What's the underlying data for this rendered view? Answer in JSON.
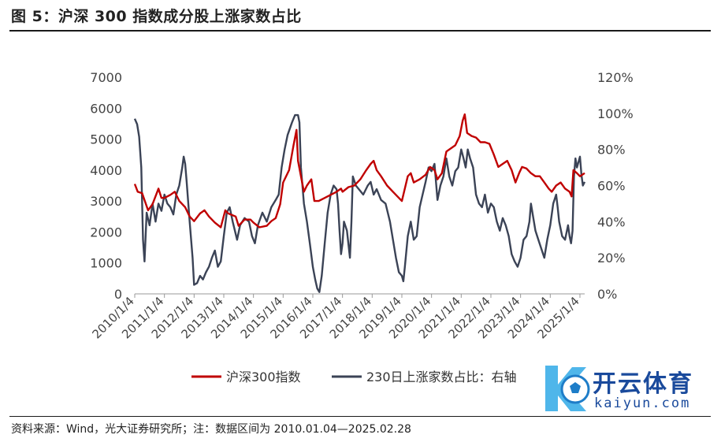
{
  "title": "图 5：沪深 300 指数成分股上涨家数占比",
  "source": "资料来源：Wind，光大证券研究所；注：数据区间为 2010.01.04—2025.02.28",
  "watermark": {
    "brand": "开云体育",
    "site": "kaiyun.com"
  },
  "colors": {
    "index": "#c00000",
    "ratio": "#3b4356"
  },
  "chart_data": {
    "type": "line",
    "title": "",
    "legend_position": "bottom",
    "x_ticks": [
      "2010/1/4",
      "2011/1/4",
      "2012/1/4",
      "2013/1/4",
      "2014/1/4",
      "2015/1/4",
      "2016/1/4",
      "2017/1/4",
      "2018/1/4",
      "2019/1/4",
      "2020/1/4",
      "2021/1/4",
      "2022/1/4",
      "2023/1/4",
      "2024/1/4",
      "2025/1/4"
    ],
    "x_range": [
      2010.0,
      2025.16
    ],
    "y_left": {
      "min": 0,
      "max": 7000,
      "ticks": [
        "0",
        "1000",
        "2000",
        "3000",
        "4000",
        "5000",
        "6000",
        "7000"
      ]
    },
    "y_right": {
      "min": 0,
      "max": 1.2,
      "ticks": [
        "0%",
        "20%",
        "40%",
        "60%",
        "80%",
        "100%",
        "120%"
      ]
    },
    "series": [
      {
        "name": "沪深300指数",
        "axis": "left",
        "points": [
          [
            2010.0,
            3550
          ],
          [
            2010.1,
            3300
          ],
          [
            2010.25,
            3250
          ],
          [
            2010.45,
            2700
          ],
          [
            2010.6,
            2900
          ],
          [
            2010.8,
            3400
          ],
          [
            2010.9,
            3100
          ],
          [
            2011.0,
            3100
          ],
          [
            2011.2,
            3200
          ],
          [
            2011.35,
            3300
          ],
          [
            2011.5,
            3000
          ],
          [
            2011.7,
            2800
          ],
          [
            2011.85,
            2500
          ],
          [
            2012.0,
            2350
          ],
          [
            2012.2,
            2600
          ],
          [
            2012.35,
            2700
          ],
          [
            2012.5,
            2500
          ],
          [
            2012.7,
            2300
          ],
          [
            2012.9,
            2150
          ],
          [
            2013.05,
            2700
          ],
          [
            2013.15,
            2600
          ],
          [
            2013.4,
            2500
          ],
          [
            2013.5,
            2200
          ],
          [
            2013.7,
            2400
          ],
          [
            2013.9,
            2400
          ],
          [
            2014.0,
            2300
          ],
          [
            2014.2,
            2150
          ],
          [
            2014.45,
            2200
          ],
          [
            2014.6,
            2350
          ],
          [
            2014.75,
            2450
          ],
          [
            2014.9,
            2900
          ],
          [
            2015.0,
            3600
          ],
          [
            2015.2,
            4000
          ],
          [
            2015.35,
            4800
          ],
          [
            2015.45,
            5300
          ],
          [
            2015.5,
            4300
          ],
          [
            2015.6,
            3800
          ],
          [
            2015.7,
            3300
          ],
          [
            2015.8,
            3500
          ],
          [
            2015.95,
            3700
          ],
          [
            2016.05,
            3000
          ],
          [
            2016.2,
            3000
          ],
          [
            2016.4,
            3100
          ],
          [
            2016.6,
            3200
          ],
          [
            2016.8,
            3300
          ],
          [
            2016.95,
            3400
          ],
          [
            2017.0,
            3300
          ],
          [
            2017.2,
            3450
          ],
          [
            2017.4,
            3500
          ],
          [
            2017.6,
            3700
          ],
          [
            2017.8,
            4000
          ],
          [
            2017.95,
            4200
          ],
          [
            2018.05,
            4300
          ],
          [
            2018.15,
            4000
          ],
          [
            2018.3,
            3800
          ],
          [
            2018.5,
            3500
          ],
          [
            2018.7,
            3300
          ],
          [
            2018.9,
            3100
          ],
          [
            2019.0,
            3000
          ],
          [
            2019.2,
            3800
          ],
          [
            2019.3,
            3900
          ],
          [
            2019.4,
            3600
          ],
          [
            2019.6,
            3700
          ],
          [
            2019.8,
            3850
          ],
          [
            2019.95,
            4100
          ],
          [
            2020.1,
            4000
          ],
          [
            2020.2,
            3700
          ],
          [
            2020.35,
            3900
          ],
          [
            2020.5,
            4600
          ],
          [
            2020.65,
            4700
          ],
          [
            2020.8,
            4800
          ],
          [
            2020.95,
            5100
          ],
          [
            2021.05,
            5600
          ],
          [
            2021.12,
            5800
          ],
          [
            2021.2,
            5200
          ],
          [
            2021.35,
            5100
          ],
          [
            2021.5,
            5050
          ],
          [
            2021.65,
            4900
          ],
          [
            2021.8,
            4900
          ],
          [
            2021.95,
            4850
          ],
          [
            2022.1,
            4500
          ],
          [
            2022.25,
            4100
          ],
          [
            2022.4,
            4200
          ],
          [
            2022.55,
            4300
          ],
          [
            2022.7,
            4000
          ],
          [
            2022.83,
            3600
          ],
          [
            2022.95,
            3900
          ],
          [
            2023.05,
            4100
          ],
          [
            2023.2,
            4050
          ],
          [
            2023.35,
            3900
          ],
          [
            2023.5,
            3800
          ],
          [
            2023.65,
            3800
          ],
          [
            2023.8,
            3600
          ],
          [
            2023.95,
            3400
          ],
          [
            2024.05,
            3300
          ],
          [
            2024.2,
            3500
          ],
          [
            2024.35,
            3600
          ],
          [
            2024.5,
            3400
          ],
          [
            2024.65,
            3300
          ],
          [
            2024.72,
            3150
          ],
          [
            2024.78,
            4000
          ],
          [
            2024.9,
            3900
          ],
          [
            2025.0,
            3800
          ],
          [
            2025.16,
            3900
          ]
        ]
      },
      {
        "name": "230日上涨家数占比：右轴",
        "axis": "right",
        "points": [
          [
            2010.0,
            0.97
          ],
          [
            2010.08,
            0.94
          ],
          [
            2010.15,
            0.87
          ],
          [
            2010.22,
            0.7
          ],
          [
            2010.28,
            0.3
          ],
          [
            2010.33,
            0.18
          ],
          [
            2010.4,
            0.45
          ],
          [
            2010.5,
            0.38
          ],
          [
            2010.6,
            0.5
          ],
          [
            2010.7,
            0.4
          ],
          [
            2010.8,
            0.5
          ],
          [
            2010.9,
            0.46
          ],
          [
            2011.0,
            0.55
          ],
          [
            2011.1,
            0.5
          ],
          [
            2011.2,
            0.48
          ],
          [
            2011.3,
            0.44
          ],
          [
            2011.4,
            0.55
          ],
          [
            2011.5,
            0.6
          ],
          [
            2011.55,
            0.65
          ],
          [
            2011.6,
            0.7
          ],
          [
            2011.65,
            0.76
          ],
          [
            2011.7,
            0.72
          ],
          [
            2011.75,
            0.62
          ],
          [
            2011.85,
            0.4
          ],
          [
            2011.95,
            0.2
          ],
          [
            2012.0,
            0.05
          ],
          [
            2012.1,
            0.06
          ],
          [
            2012.2,
            0.1
          ],
          [
            2012.3,
            0.08
          ],
          [
            2012.4,
            0.12
          ],
          [
            2012.5,
            0.15
          ],
          [
            2012.6,
            0.2
          ],
          [
            2012.7,
            0.24
          ],
          [
            2012.8,
            0.15
          ],
          [
            2012.9,
            0.18
          ],
          [
            2013.0,
            0.32
          ],
          [
            2013.1,
            0.45
          ],
          [
            2013.2,
            0.48
          ],
          [
            2013.3,
            0.4
          ],
          [
            2013.45,
            0.3
          ],
          [
            2013.55,
            0.38
          ],
          [
            2013.7,
            0.42
          ],
          [
            2013.85,
            0.4
          ],
          [
            2013.95,
            0.32
          ],
          [
            2014.05,
            0.28
          ],
          [
            2014.15,
            0.38
          ],
          [
            2014.3,
            0.45
          ],
          [
            2014.45,
            0.4
          ],
          [
            2014.6,
            0.48
          ],
          [
            2014.75,
            0.52
          ],
          [
            2014.85,
            0.55
          ],
          [
            2014.95,
            0.7
          ],
          [
            2015.05,
            0.8
          ],
          [
            2015.15,
            0.88
          ],
          [
            2015.3,
            0.95
          ],
          [
            2015.4,
            0.99
          ],
          [
            2015.5,
            0.99
          ],
          [
            2015.55,
            0.95
          ],
          [
            2015.6,
            0.7
          ],
          [
            2015.7,
            0.5
          ],
          [
            2015.8,
            0.4
          ],
          [
            2015.9,
            0.28
          ],
          [
            2016.0,
            0.15
          ],
          [
            2016.08,
            0.08
          ],
          [
            2016.15,
            0.03
          ],
          [
            2016.22,
            0.01
          ],
          [
            2016.3,
            0.1
          ],
          [
            2016.4,
            0.28
          ],
          [
            2016.5,
            0.45
          ],
          [
            2016.6,
            0.55
          ],
          [
            2016.7,
            0.6
          ],
          [
            2016.8,
            0.58
          ],
          [
            2016.85,
            0.5
          ],
          [
            2016.9,
            0.35
          ],
          [
            2016.95,
            0.22
          ],
          [
            2017.0,
            0.28
          ],
          [
            2017.05,
            0.4
          ],
          [
            2017.15,
            0.35
          ],
          [
            2017.25,
            0.2
          ],
          [
            2017.3,
            0.4
          ],
          [
            2017.35,
            0.65
          ],
          [
            2017.45,
            0.6
          ],
          [
            2017.55,
            0.58
          ],
          [
            2017.7,
            0.55
          ],
          [
            2017.85,
            0.6
          ],
          [
            2017.95,
            0.62
          ],
          [
            2018.05,
            0.55
          ],
          [
            2018.15,
            0.58
          ],
          [
            2018.3,
            0.52
          ],
          [
            2018.45,
            0.5
          ],
          [
            2018.6,
            0.4
          ],
          [
            2018.7,
            0.3
          ],
          [
            2018.8,
            0.2
          ],
          [
            2018.9,
            0.12
          ],
          [
            2019.0,
            0.1
          ],
          [
            2019.05,
            0.07
          ],
          [
            2019.1,
            0.15
          ],
          [
            2019.2,
            0.32
          ],
          [
            2019.3,
            0.4
          ],
          [
            2019.4,
            0.3
          ],
          [
            2019.5,
            0.32
          ],
          [
            2019.6,
            0.48
          ],
          [
            2019.7,
            0.55
          ],
          [
            2019.8,
            0.62
          ],
          [
            2019.9,
            0.7
          ],
          [
            2020.0,
            0.68
          ],
          [
            2020.1,
            0.72
          ],
          [
            2020.2,
            0.52
          ],
          [
            2020.3,
            0.6
          ],
          [
            2020.4,
            0.65
          ],
          [
            2020.5,
            0.75
          ],
          [
            2020.6,
            0.65
          ],
          [
            2020.7,
            0.6
          ],
          [
            2020.8,
            0.68
          ],
          [
            2020.9,
            0.7
          ],
          [
            2021.0,
            0.8
          ],
          [
            2021.08,
            0.75
          ],
          [
            2021.15,
            0.7
          ],
          [
            2021.22,
            0.8
          ],
          [
            2021.3,
            0.75
          ],
          [
            2021.4,
            0.7
          ],
          [
            2021.5,
            0.55
          ],
          [
            2021.6,
            0.5
          ],
          [
            2021.7,
            0.48
          ],
          [
            2021.8,
            0.55
          ],
          [
            2021.9,
            0.45
          ],
          [
            2022.0,
            0.5
          ],
          [
            2022.1,
            0.48
          ],
          [
            2022.2,
            0.4
          ],
          [
            2022.3,
            0.35
          ],
          [
            2022.4,
            0.42
          ],
          [
            2022.5,
            0.38
          ],
          [
            2022.6,
            0.32
          ],
          [
            2022.7,
            0.22
          ],
          [
            2022.8,
            0.18
          ],
          [
            2022.9,
            0.15
          ],
          [
            2023.0,
            0.2
          ],
          [
            2023.1,
            0.3
          ],
          [
            2023.2,
            0.32
          ],
          [
            2023.3,
            0.4
          ],
          [
            2023.35,
            0.5
          ],
          [
            2023.4,
            0.45
          ],
          [
            2023.5,
            0.35
          ],
          [
            2023.6,
            0.3
          ],
          [
            2023.7,
            0.25
          ],
          [
            2023.8,
            0.2
          ],
          [
            2023.9,
            0.3
          ],
          [
            2024.0,
            0.38
          ],
          [
            2024.1,
            0.5
          ],
          [
            2024.2,
            0.55
          ],
          [
            2024.25,
            0.48
          ],
          [
            2024.3,
            0.4
          ],
          [
            2024.4,
            0.32
          ],
          [
            2024.5,
            0.3
          ],
          [
            2024.6,
            0.38
          ],
          [
            2024.65,
            0.32
          ],
          [
            2024.7,
            0.28
          ],
          [
            2024.75,
            0.35
          ],
          [
            2024.8,
            0.65
          ],
          [
            2024.85,
            0.75
          ],
          [
            2024.9,
            0.7
          ],
          [
            2025.0,
            0.76
          ],
          [
            2025.05,
            0.66
          ],
          [
            2025.1,
            0.6
          ],
          [
            2025.16,
            0.62
          ]
        ]
      }
    ]
  }
}
